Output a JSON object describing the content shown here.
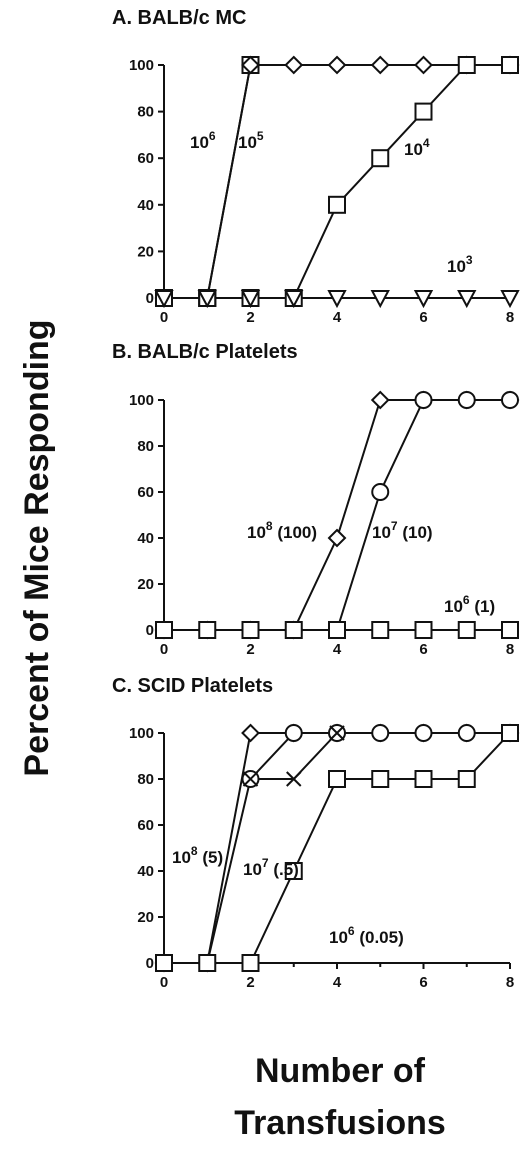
{
  "figure": {
    "ylabel": "Percent of Mice Responding",
    "xlabel_line1": "Number of",
    "xlabel_line2": "Transfusions"
  },
  "chart_data": [
    {
      "type": "line",
      "title": "A. BALB/c MC",
      "xlim": [
        0,
        8
      ],
      "ylim": [
        0,
        100
      ],
      "xticks": [
        "0",
        "2",
        "4",
        "6",
        "8"
      ],
      "yticks": [
        "0",
        "20",
        "40",
        "60",
        "80",
        "100"
      ],
      "series": [
        {
          "marker": "square",
          "x": [
            0,
            1
          ],
          "y": [
            0,
            0
          ]
        },
        {
          "label": "10",
          "exp": "6",
          "suffix": "",
          "marker": "square",
          "x": [
            0,
            1,
            2
          ],
          "y": [
            0,
            0,
            100
          ]
        },
        {
          "label": "10",
          "exp": "5",
          "suffix": "",
          "marker": "diamond",
          "x": [
            0,
            1,
            2,
            3,
            4,
            5,
            6,
            7,
            8
          ],
          "y": [
            0,
            0,
            100,
            100,
            100,
            100,
            100,
            100,
            100
          ]
        },
        {
          "label": "10",
          "exp": "4",
          "suffix": "",
          "marker": "square",
          "x": [
            0,
            1,
            2,
            3,
            4,
            5,
            6,
            7,
            8
          ],
          "y": [
            0,
            0,
            0,
            0,
            40,
            60,
            80,
            100,
            100
          ]
        },
        {
          "label": "10",
          "exp": "3",
          "suffix": "",
          "marker": "triangle-down",
          "x": [
            0,
            1,
            2,
            3,
            4,
            5,
            6,
            7,
            8
          ],
          "y": [
            0,
            0,
            0,
            0,
            0,
            0,
            0,
            0,
            0
          ]
        }
      ]
    },
    {
      "type": "line",
      "title": "B. BALB/c Platelets",
      "xlim": [
        0,
        8
      ],
      "ylim": [
        0,
        100
      ],
      "xticks": [
        "0",
        "2",
        "4",
        "6",
        "8"
      ],
      "yticks": [
        "0",
        "20",
        "40",
        "60",
        "80",
        "100"
      ],
      "series": [
        {
          "label": "10",
          "exp": "8",
          "suffix": " (100)",
          "marker": "diamond",
          "x": [
            0,
            1,
            2,
            3,
            4,
            5,
            6,
            7,
            8
          ],
          "y": [
            0,
            0,
            0,
            0,
            40,
            100,
            100,
            100,
            100
          ]
        },
        {
          "label": "10",
          "exp": "7",
          "suffix": " (10)",
          "marker": "circle",
          "x": [
            0,
            1,
            2,
            3,
            4,
            5,
            6,
            7,
            8
          ],
          "y": [
            0,
            0,
            0,
            0,
            0,
            60,
            100,
            100,
            100
          ]
        },
        {
          "label": "10",
          "exp": "6",
          "suffix": " (1)",
          "marker": "square",
          "x": [
            0,
            1,
            2,
            3,
            4,
            5,
            6,
            7,
            8
          ],
          "y": [
            0,
            0,
            0,
            0,
            0,
            0,
            0,
            0,
            0
          ]
        }
      ]
    },
    {
      "type": "line",
      "title": "C. SCID Platelets",
      "xlim": [
        0,
        8
      ],
      "ylim": [
        0,
        100
      ],
      "xticks": [
        "0",
        "2",
        "4",
        "6",
        "8"
      ],
      "yticks": [
        "0",
        "20",
        "40",
        "60",
        "80",
        "100"
      ],
      "series": [
        {
          "label": "10",
          "exp": "8",
          "suffix": " (5)",
          "marker": "diamond",
          "x": [
            0,
            1,
            2,
            3,
            4,
            5,
            6,
            7,
            8
          ],
          "y": [
            0,
            0,
            100,
            100,
            100,
            100,
            100,
            100,
            100
          ]
        },
        {
          "label": "10",
          "exp": "7",
          "suffix": " (.5)",
          "marker": "circle",
          "x": [
            0,
            1,
            2,
            3,
            4,
            5,
            6,
            7,
            8
          ],
          "y": [
            0,
            0,
            80,
            100,
            100,
            100,
            100,
            100,
            100
          ]
        },
        {
          "marker": "x",
          "x": [
            2,
            3,
            4
          ],
          "y": [
            80,
            80,
            100
          ]
        },
        {
          "label": "10",
          "exp": "6",
          "suffix": " (0.05)",
          "marker": "square",
          "x": [
            0,
            1,
            2,
            3,
            4,
            5,
            6,
            7,
            8
          ],
          "y": [
            0,
            0,
            0,
            40,
            80,
            80,
            80,
            80,
            100
          ]
        }
      ]
    }
  ]
}
